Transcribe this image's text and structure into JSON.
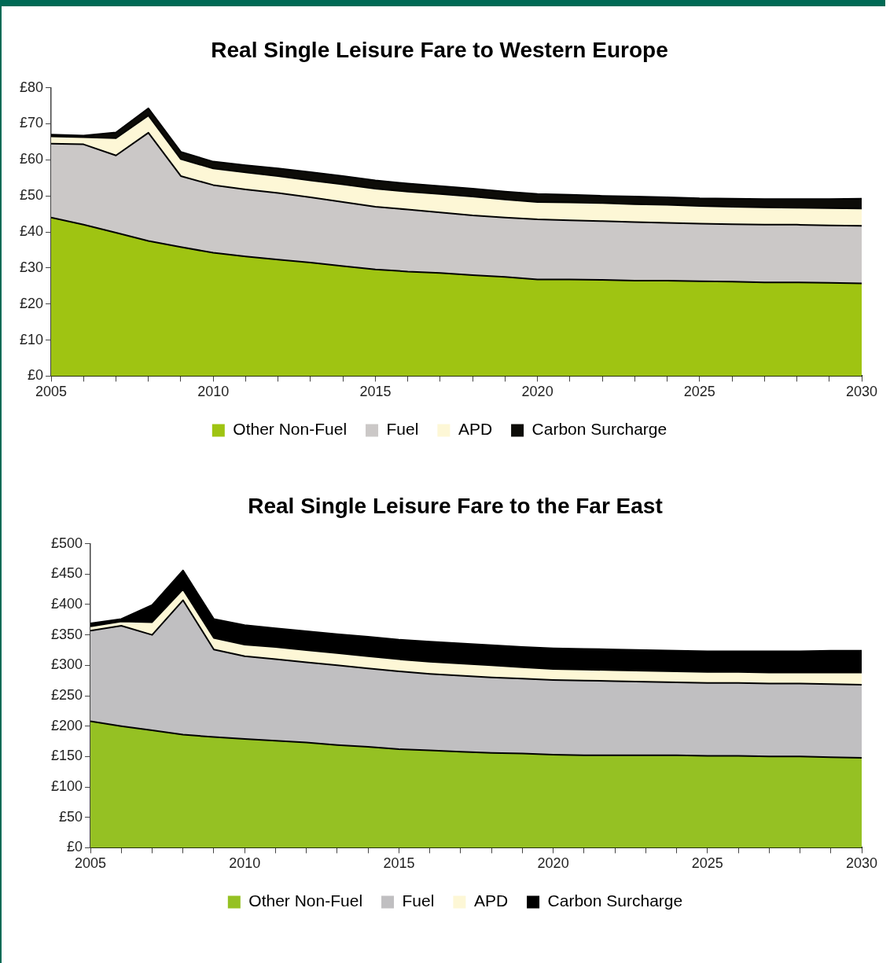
{
  "chart_data": [
    {
      "type": "area",
      "title": "Real Single Leisure Fare to Western Europe",
      "stacked": true,
      "legend": "bottom",
      "grid": false,
      "x": [
        2005,
        2006,
        2007,
        2008,
        2009,
        2010,
        2011,
        2012,
        2013,
        2014,
        2015,
        2016,
        2017,
        2018,
        2019,
        2020,
        2021,
        2022,
        2023,
        2024,
        2025,
        2026,
        2027,
        2028,
        2029,
        2030
      ],
      "xlim": [
        2005,
        2030
      ],
      "xticks": [
        2005,
        {
          "value": 2006,
          "label": null
        },
        {
          "value": 2007,
          "label": null
        },
        {
          "value": 2008,
          "label": null
        },
        {
          "value": 2009,
          "label": null
        },
        2010,
        {
          "value": 2011,
          "label": null
        },
        {
          "value": 2012,
          "label": null
        },
        {
          "value": 2013,
          "label": null
        },
        {
          "value": 2014,
          "label": null
        },
        2015,
        {
          "value": 2016,
          "label": null
        },
        {
          "value": 2017,
          "label": null
        },
        {
          "value": 2018,
          "label": null
        },
        {
          "value": 2019,
          "label": null
        },
        2020,
        {
          "value": 2021,
          "label": null
        },
        {
          "value": 2022,
          "label": null
        },
        {
          "value": 2023,
          "label": null
        },
        {
          "value": 2024,
          "label": null
        },
        2025,
        {
          "value": 2026,
          "label": null
        },
        {
          "value": 2027,
          "label": null
        },
        {
          "value": 2028,
          "label": null
        },
        {
          "value": 2029,
          "label": null
        },
        2030
      ],
      "ylim": [
        0,
        80
      ],
      "yticks": [
        {
          "value": 0,
          "label": "£0"
        },
        {
          "value": 10,
          "label": "£10"
        },
        {
          "value": 20,
          "label": "£20"
        },
        {
          "value": 30,
          "label": "£30"
        },
        {
          "value": 40,
          "label": "£40"
        },
        {
          "value": 50,
          "label": "£50"
        },
        {
          "value": 60,
          "label": "£60"
        },
        {
          "value": 70,
          "label": "£70"
        },
        {
          "value": 80,
          "label": "£80"
        }
      ],
      "series": [
        {
          "name": "Other Non-Fuel",
          "color": "#9fc412",
          "values": [
            44,
            42,
            39.8,
            37.5,
            35.8,
            34.2,
            33.2,
            32.3,
            31.5,
            30.5,
            29.6,
            29,
            28.6,
            28,
            27.5,
            26.8,
            26.8,
            26.7,
            26.5,
            26.5,
            26.3,
            26.2,
            26,
            26,
            25.9,
            25.7
          ]
        },
        {
          "name": "Fuel",
          "color": "#cbc8c7",
          "values": [
            20.5,
            22.3,
            21.4,
            30,
            19.7,
            18.8,
            18.6,
            18.5,
            18.1,
            17.8,
            17.4,
            17.2,
            16.8,
            16.6,
            16.5,
            16.7,
            16.4,
            16.3,
            16.2,
            16,
            16,
            15.9,
            16,
            16,
            15.9,
            16
          ]
        },
        {
          "name": "APD",
          "color": "#fdf7d6",
          "values": [
            2,
            2,
            4.8,
            4.8,
            4.7,
            4.6,
            4.7,
            4.7,
            4.7,
            4.9,
            5,
            5,
            5.1,
            5.2,
            5,
            4.8,
            5,
            5,
            5,
            5,
            4.9,
            4.9,
            4.8,
            4.7,
            4.8,
            4.8
          ]
        },
        {
          "name": "Carbon Surcharge",
          "color": "#0d0c08",
          "values": [
            0.5,
            0.4,
            1.6,
            2,
            2,
            1.9,
            2,
            2.1,
            2.3,
            2.3,
            2.3,
            2.2,
            2.2,
            2.2,
            2.2,
            2.2,
            2.1,
            2,
            2.1,
            2.1,
            2.1,
            2.2,
            2.3,
            2.4,
            2.5,
            2.7
          ]
        }
      ]
    },
    {
      "type": "area",
      "title": "Real Single Leisure Fare to the Far East",
      "stacked": true,
      "legend": "bottom",
      "grid": false,
      "x": [
        2005,
        2006,
        2007,
        2008,
        2009,
        2010,
        2011,
        2012,
        2013,
        2014,
        2015,
        2016,
        2017,
        2018,
        2019,
        2020,
        2021,
        2022,
        2023,
        2024,
        2025,
        2026,
        2027,
        2028,
        2029,
        2030
      ],
      "xlim": [
        2005,
        2030
      ],
      "xticks": [
        2005,
        {
          "value": 2006,
          "label": null
        },
        {
          "value": 2007,
          "label": null
        },
        {
          "value": 2008,
          "label": null
        },
        {
          "value": 2009,
          "label": null
        },
        2010,
        {
          "value": 2011,
          "label": null
        },
        {
          "value": 2012,
          "label": null
        },
        {
          "value": 2013,
          "label": null
        },
        {
          "value": 2014,
          "label": null
        },
        2015,
        {
          "value": 2016,
          "label": null
        },
        {
          "value": 2017,
          "label": null
        },
        {
          "value": 2018,
          "label": null
        },
        {
          "value": 2019,
          "label": null
        },
        2020,
        {
          "value": 2021,
          "label": null
        },
        {
          "value": 2022,
          "label": null
        },
        {
          "value": 2023,
          "label": null
        },
        {
          "value": 2024,
          "label": null
        },
        2025,
        {
          "value": 2026,
          "label": null
        },
        {
          "value": 2027,
          "label": null
        },
        {
          "value": 2028,
          "label": null
        },
        {
          "value": 2029,
          "label": null
        },
        2030
      ],
      "ylim": [
        0,
        500
      ],
      "yticks": [
        {
          "value": 0,
          "label": "£0"
        },
        {
          "value": 50,
          "label": "£50"
        },
        {
          "value": 100,
          "label": "£100"
        },
        {
          "value": 150,
          "label": "£150"
        },
        {
          "value": 200,
          "label": "£200"
        },
        {
          "value": 250,
          "label": "£250"
        },
        {
          "value": 300,
          "label": "£300"
        },
        {
          "value": 350,
          "label": "£350"
        },
        {
          "value": 400,
          "label": "£400"
        },
        {
          "value": 450,
          "label": "£450"
        },
        {
          "value": 500,
          "label": "£500"
        }
      ],
      "series": [
        {
          "name": "Other Non-Fuel",
          "color": "#95c123",
          "values": [
            208,
            200,
            193,
            186,
            182,
            179,
            176,
            173,
            169,
            166,
            162,
            160,
            158,
            156,
            155,
            153,
            152,
            152,
            152,
            152,
            151,
            151,
            150,
            150,
            149,
            148
          ]
        },
        {
          "name": "Fuel",
          "color": "#c0bfc1",
          "values": [
            149,
            165,
            157,
            221,
            144,
            136,
            134,
            132,
            131,
            129,
            128,
            126,
            125,
            124,
            123,
            123,
            123,
            122,
            121,
            120,
            120,
            120,
            120,
            120,
            120,
            120
          ]
        },
        {
          "name": "APD",
          "color": "#fdf7d6",
          "values": [
            7,
            7,
            21,
            18,
            19,
            19,
            20,
            20,
            20,
            20,
            20,
            20,
            20,
            20,
            19,
            18,
            18,
            18,
            18,
            18,
            18,
            18,
            18,
            18,
            19,
            20
          ]
        },
        {
          "name": "Carbon Surcharge",
          "color": "#000000",
          "values": [
            5,
            4,
            28,
            31,
            31,
            32,
            31,
            31,
            31,
            32,
            32,
            33,
            33,
            33,
            33,
            34,
            34,
            34,
            34,
            34,
            34,
            34,
            35,
            35,
            36,
            36
          ]
        }
      ]
    }
  ]
}
